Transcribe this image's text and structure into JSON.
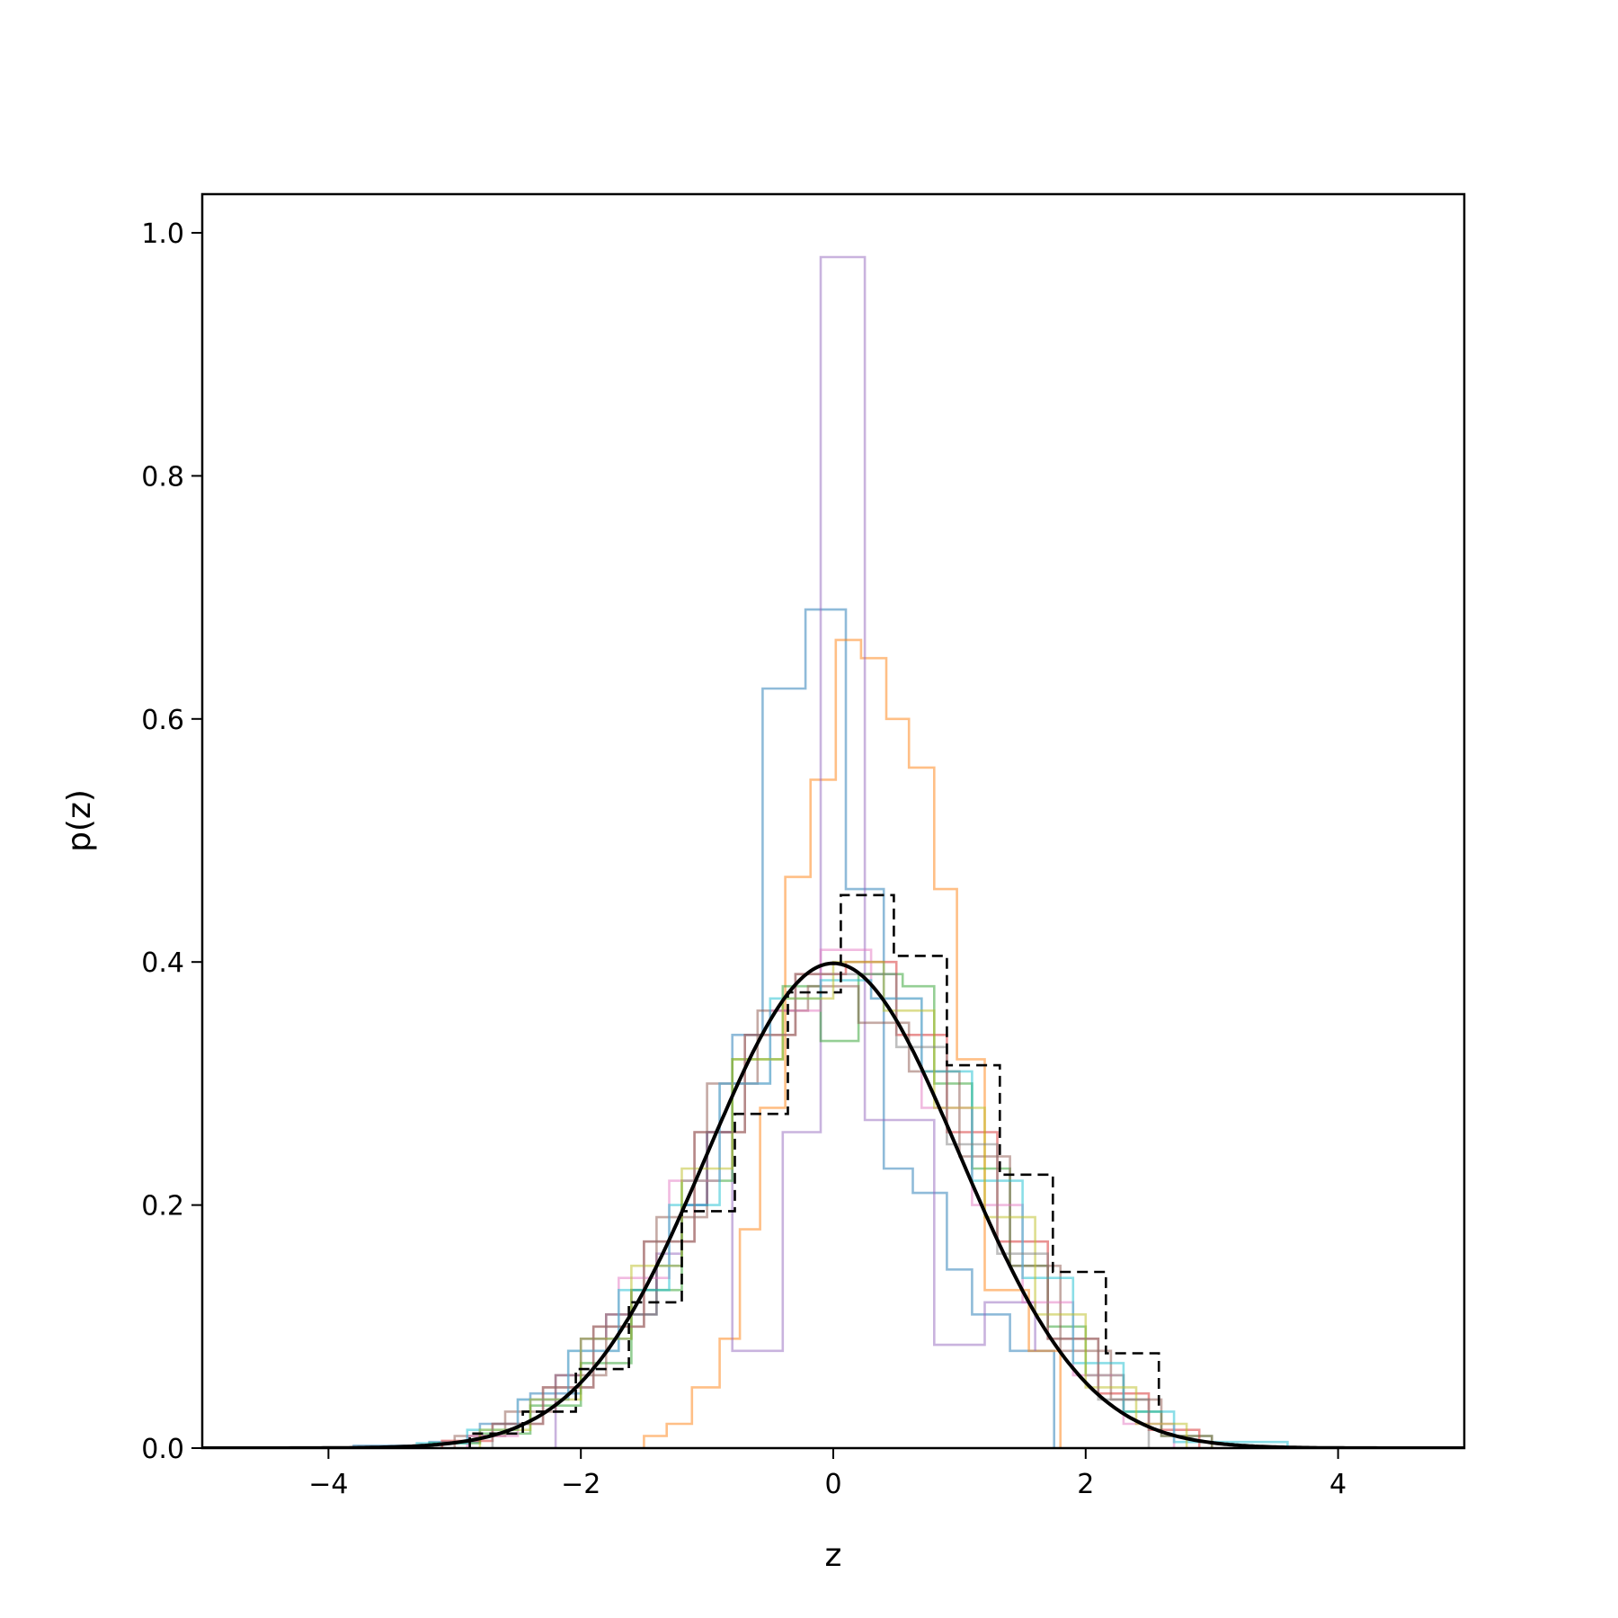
{
  "chart_data": {
    "type": "line",
    "title": "",
    "xlabel": "z",
    "ylabel": "p(z)",
    "xlim": [
      -5,
      5
    ],
    "ylim": [
      0,
      1.03
    ],
    "grid": false,
    "legend": "none",
    "x_ticks": [
      {
        "value": -4,
        "label": "−4"
      },
      {
        "value": -2,
        "label": "−2"
      },
      {
        "value": 0,
        "label": "0"
      },
      {
        "value": 2,
        "label": "2"
      },
      {
        "value": 4,
        "label": "4"
      }
    ],
    "y_ticks": [
      {
        "value": 0,
        "label": "0.0"
      },
      {
        "value": 0.2,
        "label": "0.2"
      },
      {
        "value": 0.4,
        "label": "0.4"
      },
      {
        "value": 0.6,
        "label": "0.6"
      },
      {
        "value": 0.8,
        "label": "0.8"
      },
      {
        "value": 1.0,
        "label": "1.0"
      }
    ],
    "series": [
      {
        "kind": "step-histogram",
        "color": "#1f77b4",
        "edges": [
          -3.8,
          -3.2,
          -2.8,
          -2.4,
          -2.0,
          -1.6,
          -1.4,
          -1.2,
          -1.0,
          -0.8,
          -0.56,
          -0.22,
          0.1,
          0.4,
          0.63,
          0.9,
          1.1,
          1.4,
          1.75
        ],
        "heights": [
          0.002,
          0.005,
          0.02,
          0.045,
          0.09,
          0.11,
          0.15,
          0.2,
          0.26,
          0.34,
          0.625,
          0.69,
          0.46,
          0.23,
          0.21,
          0.147,
          0.11,
          0.08
        ]
      },
      {
        "kind": "step-histogram",
        "color": "#ff7f0e",
        "edges": [
          -1.5,
          -1.32,
          -1.12,
          -0.9,
          -0.74,
          -0.58,
          -0.38,
          -0.18,
          0.02,
          0.22,
          0.42,
          0.6,
          0.8,
          0.98,
          1.2,
          1.55,
          1.8
        ],
        "heights": [
          0.01,
          0.02,
          0.05,
          0.09,
          0.18,
          0.28,
          0.47,
          0.55,
          0.665,
          0.65,
          0.6,
          0.56,
          0.46,
          0.32,
          0.13,
          0.08
        ]
      },
      {
        "kind": "step-histogram",
        "color": "#9467bd",
        "edges": [
          -2.2,
          -2.0,
          -1.8,
          -1.6,
          -1.4,
          -1.2,
          -1.0,
          -0.8,
          -0.6,
          -0.4,
          -0.25,
          -0.1,
          0.25,
          0.6,
          0.8,
          0.95,
          1.2,
          1.6
        ],
        "heights": [
          0.06,
          0.09,
          0.11,
          0.13,
          0.16,
          0.2,
          0.26,
          0.08,
          0.08,
          0.26,
          0.26,
          0.98,
          0.27,
          0.27,
          0.085,
          0.085,
          0.12,
          0.08
        ]
      },
      {
        "kind": "step-histogram",
        "color": "#2ca02c",
        "edges": [
          -3.2,
          -2.8,
          -2.4,
          -2.0,
          -1.6,
          -1.2,
          -0.8,
          -0.4,
          -0.1,
          0.2,
          0.55,
          0.8,
          1.1,
          1.4,
          1.7,
          2.0,
          2.3,
          2.6,
          3.0
        ],
        "heights": [
          0.004,
          0.012,
          0.035,
          0.07,
          0.13,
          0.22,
          0.32,
          0.38,
          0.335,
          0.39,
          0.38,
          0.3,
          0.23,
          0.15,
          0.1,
          0.06,
          0.03,
          0.01
        ]
      },
      {
        "kind": "step-histogram",
        "color": "#d62728",
        "edges": [
          -3.1,
          -2.7,
          -2.3,
          -1.9,
          -1.5,
          -1.1,
          -0.7,
          -0.3,
          0.1,
          0.5,
          0.9,
          1.3,
          1.7,
          2.1,
          2.5,
          2.9
        ],
        "heights": [
          0.006,
          0.02,
          0.05,
          0.1,
          0.17,
          0.26,
          0.34,
          0.39,
          0.4,
          0.34,
          0.26,
          0.17,
          0.09,
          0.045,
          0.015
        ]
      },
      {
        "kind": "step-histogram",
        "color": "#8c564b",
        "edges": [
          -3.0,
          -2.6,
          -2.2,
          -1.8,
          -1.4,
          -1.0,
          -0.6,
          -0.2,
          0.2,
          0.6,
          1.0,
          1.4,
          1.8,
          2.2,
          2.6,
          3.0
        ],
        "heights": [
          0.01,
          0.03,
          0.06,
          0.11,
          0.19,
          0.3,
          0.36,
          0.38,
          0.35,
          0.31,
          0.24,
          0.15,
          0.08,
          0.04,
          0.01
        ]
      },
      {
        "kind": "step-histogram",
        "color": "#e377c2",
        "edges": [
          -2.9,
          -2.5,
          -2.1,
          -1.7,
          -1.3,
          -0.9,
          -0.5,
          -0.1,
          0.3,
          0.7,
          1.1,
          1.5,
          1.9,
          2.3,
          2.7
        ],
        "heights": [
          0.01,
          0.04,
          0.08,
          0.14,
          0.22,
          0.3,
          0.36,
          0.41,
          0.37,
          0.28,
          0.2,
          0.12,
          0.06,
          0.02
        ]
      },
      {
        "kind": "step-histogram",
        "color": "#17becf",
        "edges": [
          -3.3,
          -2.9,
          -2.5,
          -2.1,
          -1.7,
          -1.3,
          -0.9,
          -0.5,
          -0.1,
          0.3,
          0.7,
          1.1,
          1.5,
          1.9,
          2.3,
          2.7,
          3.6
        ],
        "heights": [
          0.004,
          0.015,
          0.04,
          0.08,
          0.13,
          0.2,
          0.3,
          0.37,
          0.385,
          0.37,
          0.31,
          0.22,
          0.14,
          0.07,
          0.03,
          0.005
        ]
      },
      {
        "kind": "step-histogram",
        "color": "#bcbd22",
        "edges": [
          -2.8,
          -2.4,
          -2.0,
          -1.6,
          -1.2,
          -0.8,
          -0.4,
          0.0,
          0.4,
          0.8,
          1.2,
          1.6,
          2.0,
          2.4,
          2.8
        ],
        "heights": [
          0.015,
          0.04,
          0.09,
          0.15,
          0.23,
          0.32,
          0.37,
          0.4,
          0.36,
          0.28,
          0.19,
          0.11,
          0.05,
          0.02
        ]
      },
      {
        "kind": "step-histogram",
        "color": "#7f7f7f",
        "edges": [
          -2.7,
          -2.3,
          -1.9,
          -1.5,
          -1.1,
          -0.7,
          -0.3,
          0.1,
          0.5,
          0.9,
          1.3,
          1.7,
          2.1,
          2.5
        ],
        "heights": [
          0.02,
          0.05,
          0.1,
          0.17,
          0.26,
          0.34,
          0.39,
          0.39,
          0.33,
          0.25,
          0.16,
          0.09,
          0.04
        ]
      },
      {
        "kind": "step-histogram",
        "color": "#000000",
        "dashed": true,
        "edges": [
          -2.88,
          -2.46,
          -2.04,
          -1.62,
          -1.2,
          -0.78,
          -0.36,
          0.06,
          0.48,
          0.9,
          1.32,
          1.74,
          2.16,
          2.58
        ],
        "heights": [
          0.012,
          0.03,
          0.065,
          0.12,
          0.195,
          0.275,
          0.375,
          0.455,
          0.405,
          0.315,
          0.225,
          0.145,
          0.078,
          0.035
        ]
      },
      {
        "kind": "curve",
        "color": "#000000",
        "function": "standard normal pdf",
        "x": [
          -5.0,
          -4.5,
          -4.0,
          -3.5,
          -3.0,
          -2.5,
          -2.0,
          -1.5,
          -1.0,
          -0.5,
          0.0,
          0.5,
          1.0,
          1.5,
          2.0,
          2.5,
          3.0,
          3.5,
          4.0,
          4.5,
          5.0
        ],
        "y": [
          1.5e-06,
          1.6e-05,
          0.00013,
          0.00087,
          0.0044,
          0.0175,
          0.054,
          0.1295,
          0.242,
          0.352,
          0.399,
          0.352,
          0.242,
          0.1295,
          0.054,
          0.0175,
          0.0044,
          0.00087,
          0.00013,
          1.6e-05,
          1.5e-06
        ]
      }
    ]
  }
}
